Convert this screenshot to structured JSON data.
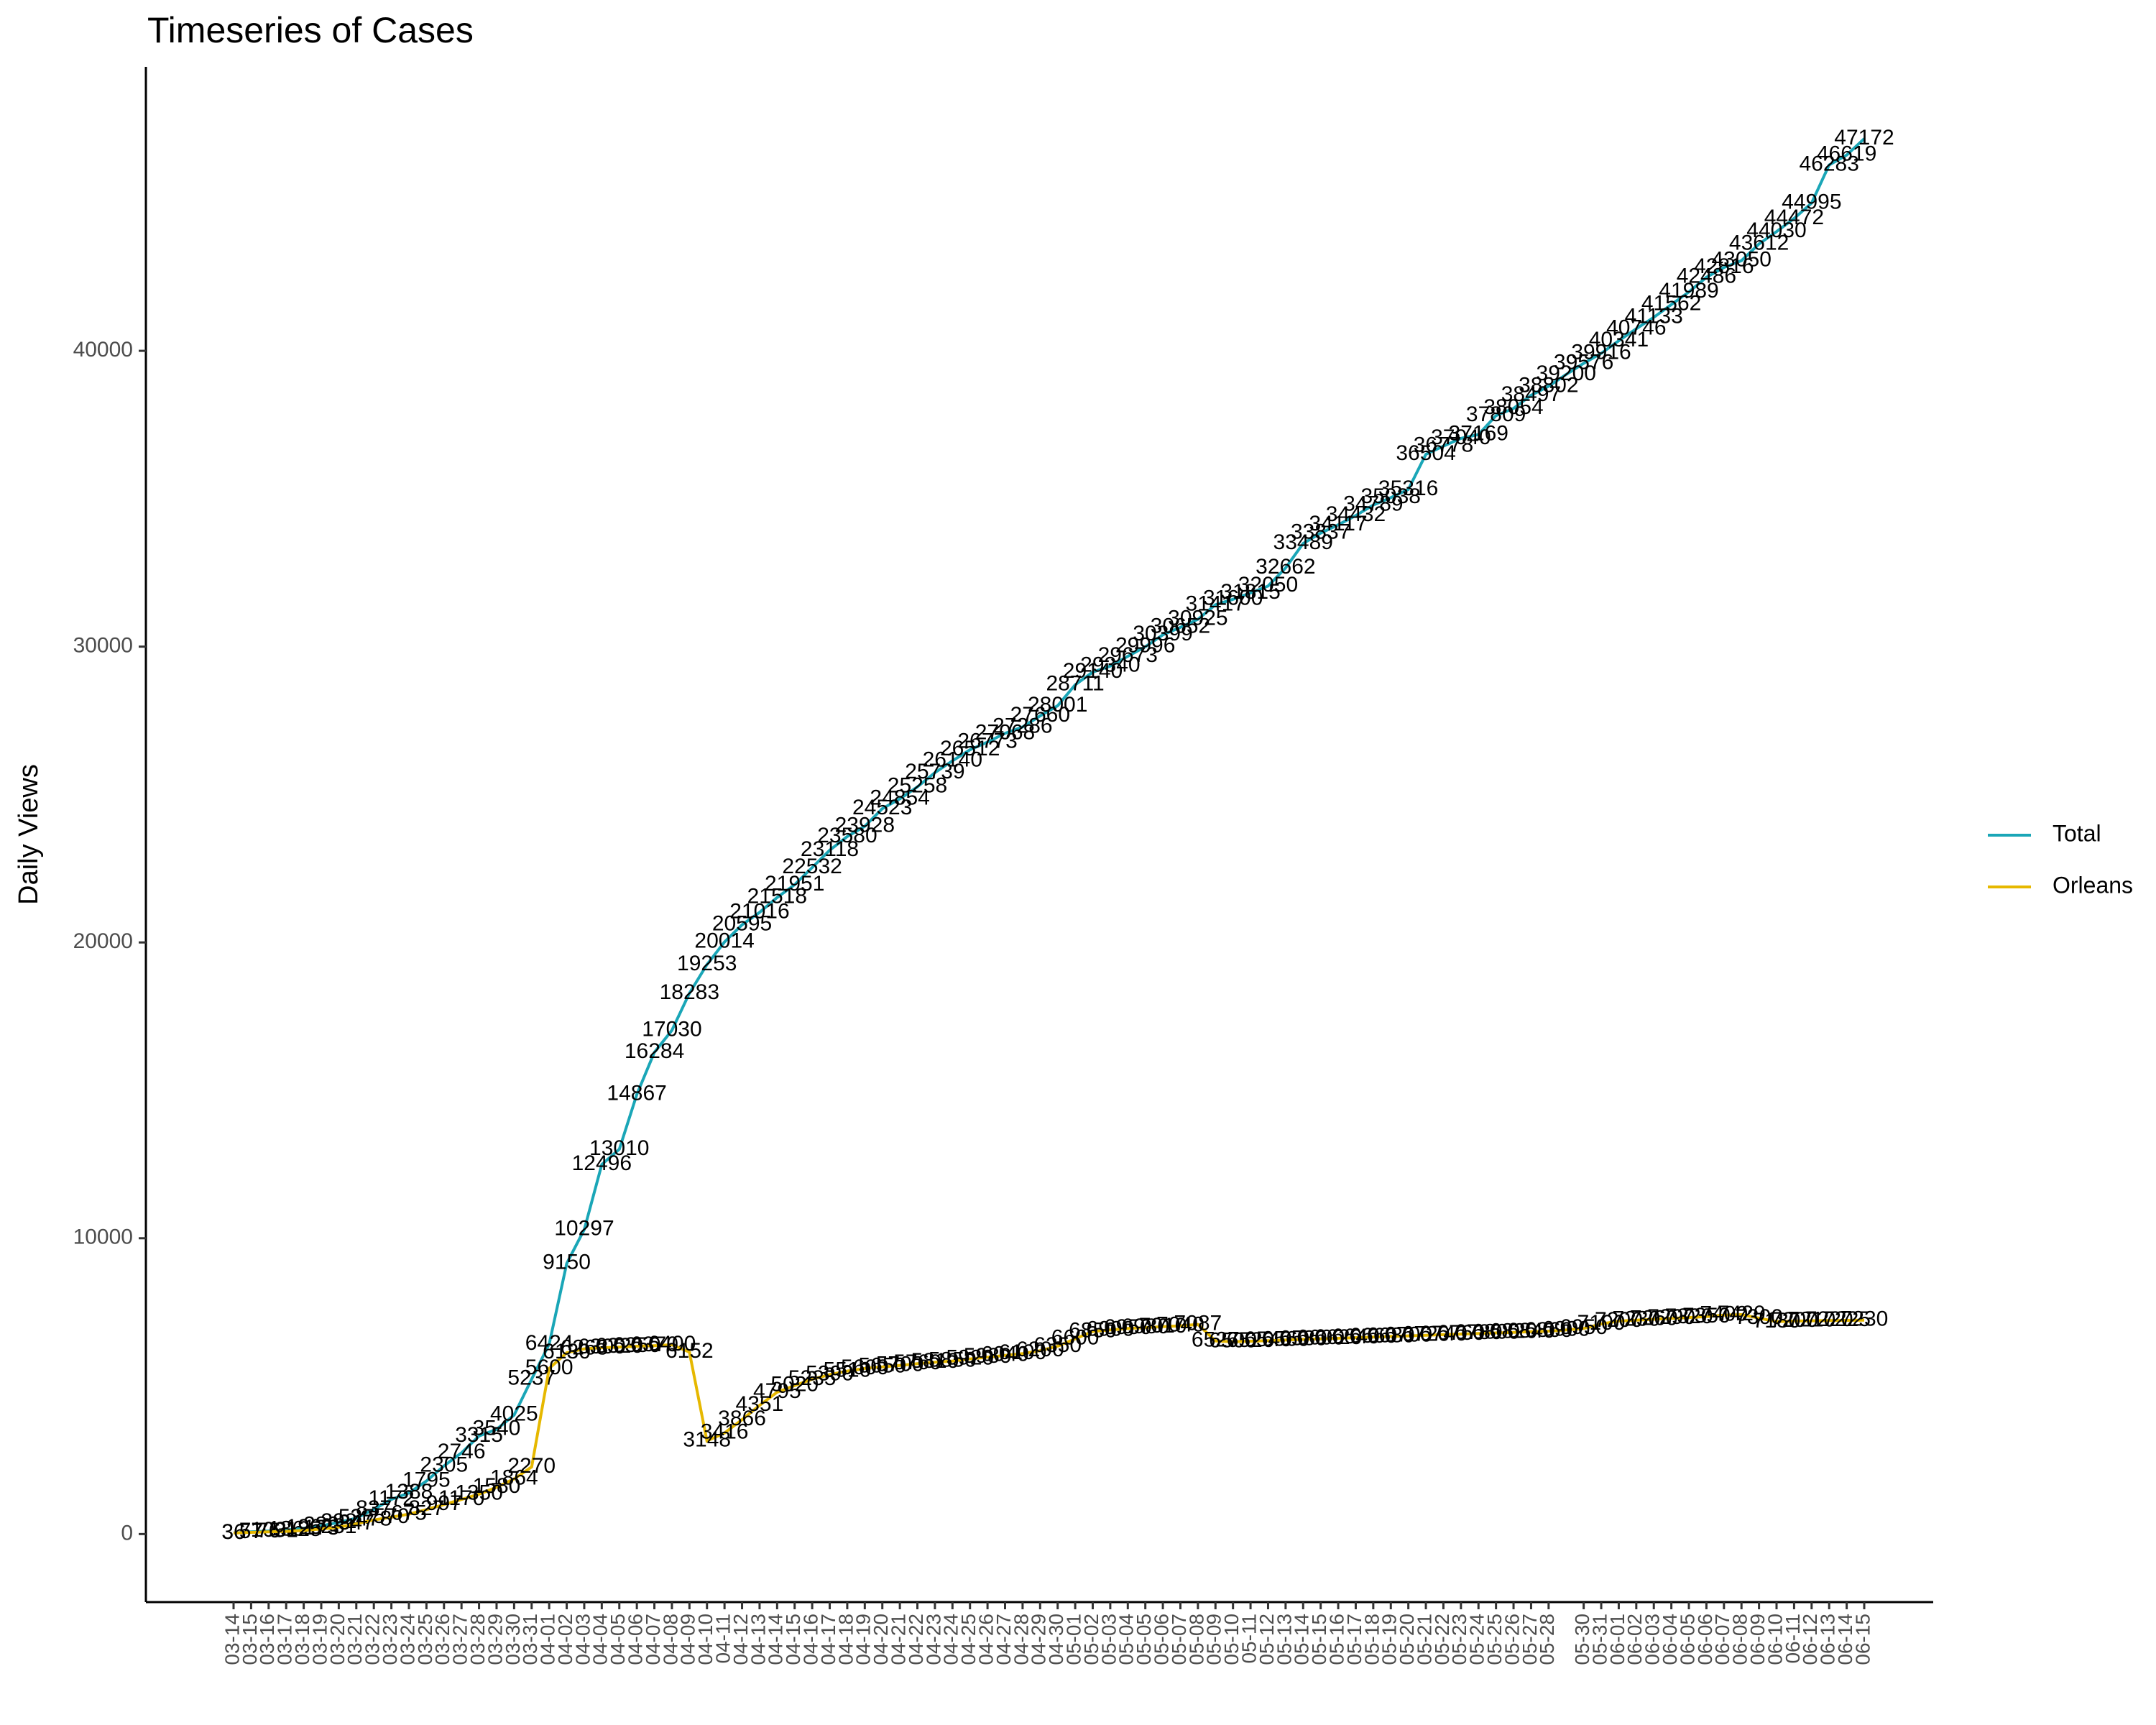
{
  "chart_data": {
    "type": "line",
    "title": "Timeseries of Cases",
    "y_label": "Daily Views",
    "categories": [
      "03-14",
      "03-15",
      "03-16",
      "03-17",
      "03-18",
      "03-19",
      "03-20",
      "03-21",
      "03-22",
      "03-23",
      "03-24",
      "03-25",
      "03-26",
      "03-27",
      "03-28",
      "03-29",
      "03-30",
      "03-31",
      "04-01",
      "04-02",
      "04-03",
      "04-04",
      "04-05",
      "04-06",
      "04-07",
      "04-08",
      "04-09",
      "04-10",
      "04-11",
      "04-12",
      "04-13",
      "04-14",
      "04-15",
      "04-16",
      "04-17",
      "04-18",
      "04-19",
      "04-20",
      "04-21",
      "04-22",
      "04-23",
      "04-24",
      "04-25",
      "04-26",
      "04-27",
      "04-28",
      "04-29",
      "04-30",
      "05-01",
      "05-02",
      "05-03",
      "05-04",
      "05-05",
      "05-06",
      "05-07",
      "05-08",
      "05-09",
      "05-10",
      "05-11",
      "05-12",
      "05-13",
      "05-14",
      "05-15",
      "05-16",
      "05-17",
      "05-18",
      "05-19",
      "05-20",
      "05-21",
      "05-22",
      "05-23",
      "05-24",
      "05-25",
      "05-26",
      "05-27",
      "05-28",
      null,
      "05-30",
      "05-31",
      "06-01",
      "06-02",
      "06-03",
      "06-04",
      "06-05",
      "06-06",
      "06-07",
      "06-08",
      "06-09",
      "06-10",
      "06-11",
      "06-12",
      "06-13",
      "06-14",
      "06-15"
    ],
    "series": [
      {
        "name": "Total",
        "color": "#1aa6b7",
        "values": [
          36,
          77,
          103,
          136,
          196,
          280,
          392,
          537,
          837,
          1172,
          1388,
          1795,
          2305,
          2746,
          3315,
          3540,
          4025,
          5237,
          6424,
          9150,
          10297,
          12496,
          13010,
          14867,
          16284,
          17030,
          18283,
          19253,
          20014,
          20595,
          21016,
          21518,
          21951,
          22532,
          23118,
          23580,
          23928,
          24523,
          24854,
          25258,
          25739,
          26140,
          26512,
          26773,
          27068,
          27286,
          27660,
          28001,
          28711,
          29140,
          29340,
          29673,
          29996,
          30399,
          30652,
          30925,
          31417,
          31600,
          31815,
          32050,
          32662,
          33489,
          33837,
          34117,
          34432,
          34789,
          35038,
          35316,
          36504,
          36778,
          37040,
          37169,
          37809,
          38054,
          38497,
          38802,
          39200,
          39576,
          39916,
          40341,
          40746,
          41133,
          41562,
          41989,
          42486,
          42816,
          43050,
          43612,
          44030,
          44472,
          44995,
          46283,
          46619,
          47172
        ]
      },
      {
        "name": "Orleans",
        "color": "#e6b800",
        "values": [
          36,
          57,
          76,
          91,
          125,
          173,
          231,
          347,
          478,
          570,
          675,
          827,
          997,
          1170,
          1350,
          1580,
          1864,
          2270,
          5600,
          6130,
          6263,
          6300,
          6320,
          6350,
          6370,
          6400,
          6152,
          3148,
          3416,
          3866,
          4351,
          4795,
          5020,
          5235,
          5390,
          5510,
          5600,
          5650,
          5700,
          5760,
          5810,
          5850,
          5920,
          5980,
          6040,
          6100,
          6200,
          6350,
          6600,
          6850,
          6900,
          6950,
          6980,
          7010,
          7040,
          7087,
          6527,
          6500,
          6520,
          6540,
          6560,
          6580,
          6600,
          6620,
          6640,
          6660,
          6680,
          6700,
          6720,
          6740,
          6760,
          6780,
          6800,
          6820,
          6840,
          6860,
          6900,
          6950,
          7100,
          7200,
          7230,
          7260,
          7290,
          7320,
          7350,
          7400,
          7420,
          7300,
          7180,
          7200,
          7210,
          7220,
          7225,
          7230
        ]
      }
    ],
    "ylim": [
      -2300,
      49600
    ],
    "yticks": [
      0,
      10000,
      20000,
      30000,
      40000
    ],
    "grid": false,
    "legend": "right"
  }
}
